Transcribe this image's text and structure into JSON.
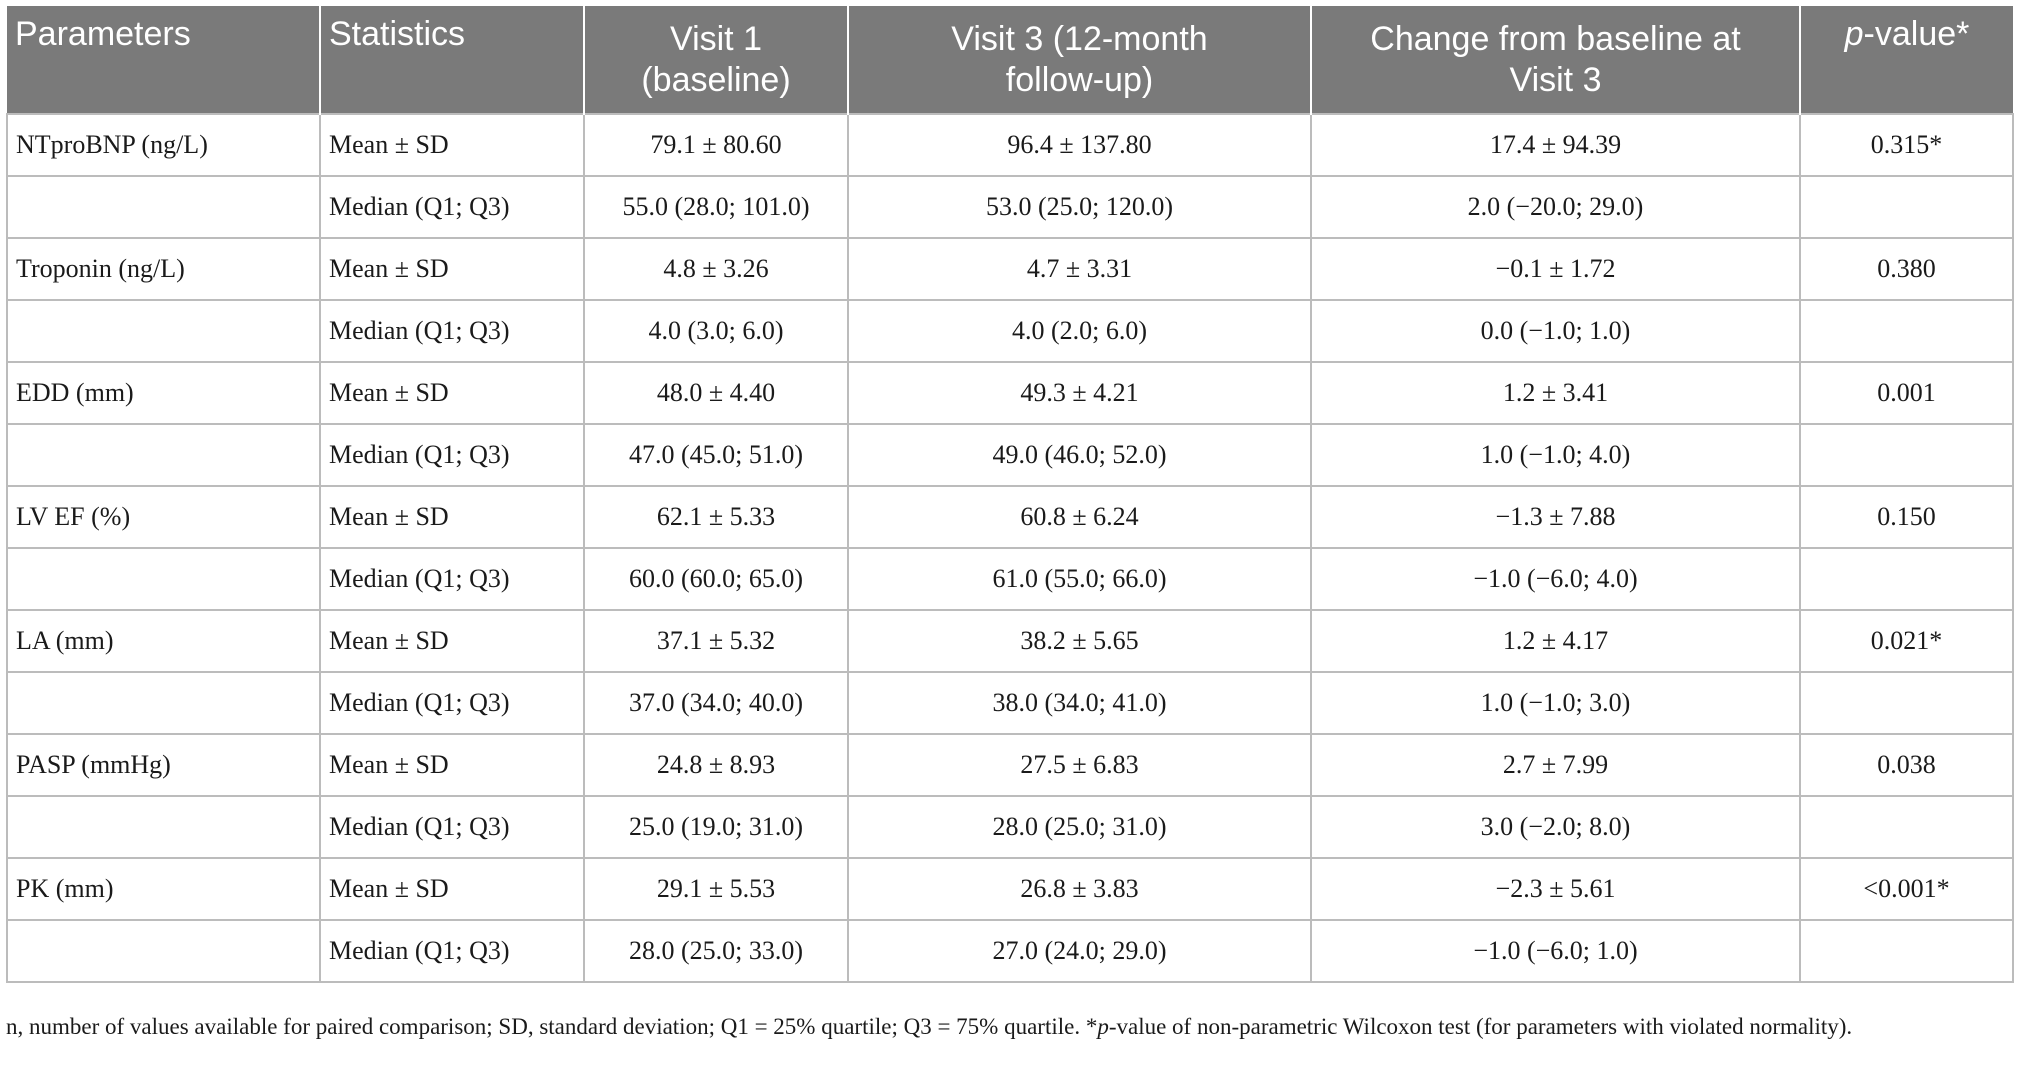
{
  "table": {
    "headers": {
      "parameters": "Parameters",
      "statistics": "Statistics",
      "visit1_line1": "Visit 1",
      "visit1_line2": "(baseline)",
      "visit3_line1": "Visit 3 (12-month",
      "visit3_line2": "follow-up)",
      "change_line1": "Change from baseline at",
      "change_line2": "Visit 3",
      "pvalue_italic": "p",
      "pvalue_rest": "-value*"
    },
    "rows": [
      {
        "parameter": "NTproBNP (ng/L)",
        "stat": "Mean ± SD",
        "v1": "79.1 ± 80.60",
        "v3": "96.4 ± 137.80",
        "change": "17.4 ± 94.39",
        "p": "0.315*"
      },
      {
        "parameter": "",
        "stat": "Median (Q1; Q3)",
        "v1": "55.0 (28.0; 101.0)",
        "v3": "53.0 (25.0; 120.0)",
        "change": "2.0 (−20.0; 29.0)",
        "p": ""
      },
      {
        "parameter": "Troponin (ng/L)",
        "stat": "Mean ± SD",
        "v1": "4.8 ± 3.26",
        "v3": "4.7 ± 3.31",
        "change": "−0.1 ± 1.72",
        "p": "0.380"
      },
      {
        "parameter": "",
        "stat": "Median (Q1; Q3)",
        "v1": "4.0 (3.0; 6.0)",
        "v3": "4.0 (2.0; 6.0)",
        "change": "0.0 (−1.0; 1.0)",
        "p": ""
      },
      {
        "parameter": "EDD (mm)",
        "stat": "Mean ± SD",
        "v1": "48.0 ± 4.40",
        "v3": "49.3 ± 4.21",
        "change": "1.2 ± 3.41",
        "p": "0.001"
      },
      {
        "parameter": "",
        "stat": "Median (Q1; Q3)",
        "v1": "47.0 (45.0; 51.0)",
        "v3": "49.0 (46.0; 52.0)",
        "change": "1.0 (−1.0; 4.0)",
        "p": ""
      },
      {
        "parameter": "LV EF (%)",
        "stat": "Mean ± SD",
        "v1": "62.1 ± 5.33",
        "v3": "60.8 ± 6.24",
        "change": "−1.3 ± 7.88",
        "p": "0.150"
      },
      {
        "parameter": "",
        "stat": "Median (Q1; Q3)",
        "v1": "60.0 (60.0; 65.0)",
        "v3": "61.0 (55.0; 66.0)",
        "change": "−1.0 (−6.0; 4.0)",
        "p": ""
      },
      {
        "parameter": "LA (mm)",
        "stat": "Mean ± SD",
        "v1": "37.1 ± 5.32",
        "v3": "38.2 ± 5.65",
        "change": "1.2 ± 4.17",
        "p": "0.021*"
      },
      {
        "parameter": "",
        "stat": "Median (Q1; Q3)",
        "v1": "37.0 (34.0; 40.0)",
        "v3": "38.0 (34.0; 41.0)",
        "change": "1.0 (−1.0; 3.0)",
        "p": ""
      },
      {
        "parameter": "PASP (mmHg)",
        "stat": "Mean ± SD",
        "v1": "24.8 ± 8.93",
        "v3": "27.5 ± 6.83",
        "change": "2.7 ± 7.99",
        "p": "0.038"
      },
      {
        "parameter": "",
        "stat": "Median (Q1; Q3)",
        "v1": "25.0 (19.0; 31.0)",
        "v3": "28.0 (25.0; 31.0)",
        "change": "3.0 (−2.0; 8.0)",
        "p": ""
      },
      {
        "parameter": "PK (mm)",
        "stat": "Mean ± SD",
        "v1": "29.1 ± 5.53",
        "v3": "26.8 ± 3.83",
        "change": "−2.3 ± 5.61",
        "p": "<0.001*"
      },
      {
        "parameter": "",
        "stat": "Median (Q1; Q3)",
        "v1": "28.0 (25.0; 33.0)",
        "v3": "27.0 (24.0; 29.0)",
        "change": "−1.0 (−6.0; 1.0)",
        "p": ""
      }
    ]
  },
  "footnote": {
    "part1": "n, number of values available for paired comparison; SD, standard deviation; Q1 = 25% quartile; Q3 = 75% quartile. *",
    "part2_italic": "p",
    "part3": "-value of non-parametric Wilcoxon test (for parameters with violated normality)."
  }
}
